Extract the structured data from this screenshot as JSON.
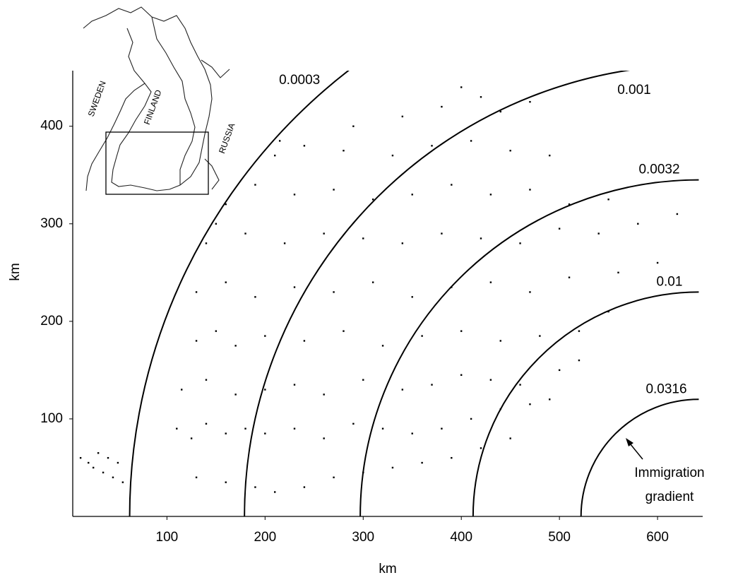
{
  "chart_data": {
    "type": "scatter",
    "x_label": "km",
    "y_label": "km",
    "xlim": [
      4,
      646
    ],
    "ylim": [
      0,
      457
    ],
    "xticks": [
      100,
      200,
      300,
      400,
      500,
      600
    ],
    "yticks": [
      100,
      200,
      300,
      400
    ],
    "color": "#000000",
    "x": [
      12,
      20,
      25,
      30,
      35,
      40,
      45,
      50,
      55,
      130,
      160,
      190,
      210,
      240,
      270,
      300,
      330,
      360,
      390,
      420,
      450,
      110,
      125,
      140,
      160,
      180,
      200,
      230,
      260,
      290,
      320,
      350,
      380,
      410,
      440,
      470,
      490,
      115,
      140,
      170,
      200,
      230,
      260,
      300,
      340,
      370,
      400,
      430,
      460,
      500,
      520,
      130,
      150,
      170,
      200,
      240,
      280,
      320,
      360,
      400,
      440,
      480,
      520,
      550,
      130,
      160,
      190,
      230,
      270,
      310,
      350,
      390,
      430,
      470,
      510,
      560,
      600,
      140,
      150,
      180,
      220,
      260,
      300,
      340,
      380,
      420,
      460,
      500,
      540,
      580,
      620,
      160,
      190,
      230,
      270,
      310,
      350,
      390,
      430,
      470,
      510,
      550,
      215,
      210,
      240,
      280,
      330,
      370,
      410,
      450,
      490,
      290,
      340,
      380,
      400,
      420,
      440,
      470
    ],
    "values": [
      60,
      55,
      50,
      65,
      45,
      60,
      40,
      55,
      35,
      40,
      35,
      30,
      25,
      30,
      40,
      45,
      50,
      55,
      60,
      70,
      80,
      90,
      80,
      95,
      85,
      90,
      85,
      90,
      80,
      95,
      90,
      85,
      90,
      100,
      110,
      115,
      120,
      130,
      140,
      125,
      130,
      135,
      125,
      140,
      130,
      135,
      145,
      140,
      135,
      150,
      160,
      180,
      190,
      175,
      185,
      180,
      190,
      175,
      185,
      190,
      180,
      185,
      190,
      210,
      230,
      240,
      225,
      235,
      230,
      240,
      225,
      235,
      240,
      230,
      245,
      250,
      260,
      280,
      300,
      290,
      280,
      290,
      285,
      280,
      290,
      285,
      280,
      295,
      290,
      300,
      310,
      320,
      340,
      330,
      335,
      325,
      330,
      340,
      330,
      335,
      320,
      325,
      385,
      370,
      380,
      375,
      370,
      380,
      385,
      375,
      370,
      400,
      410,
      420,
      440,
      430,
      415,
      425
    ],
    "arc_center": [
      642,
      0
    ],
    "arcs": [
      {
        "label": "0.0003",
        "radius": 580
      },
      {
        "label": "0.001",
        "radius": 463
      },
      {
        "label": "0.0032",
        "radius": 345
      },
      {
        "label": "0.01",
        "radius": 230
      },
      {
        "label": "0.0316",
        "radius": 120
      }
    ],
    "annotation": [
      "Immigration",
      "gradient"
    ],
    "map_labels": [
      "SWEDEN",
      "FINLAND",
      "RUSSIA"
    ]
  }
}
